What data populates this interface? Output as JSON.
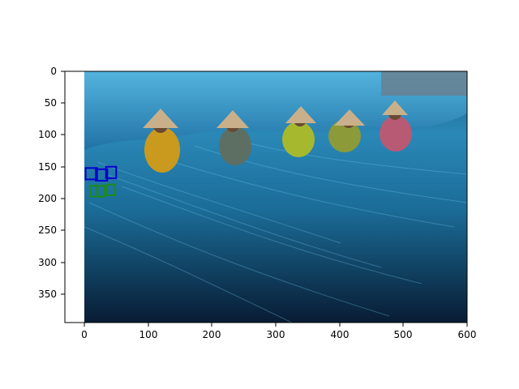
{
  "figure": {
    "x_ticks": [
      "0",
      "100",
      "200",
      "300",
      "400",
      "500",
      "600"
    ],
    "y_ticks": [
      "0",
      "50",
      "100",
      "150",
      "200",
      "250",
      "300",
      "350"
    ],
    "xlim": [
      -30,
      600
    ],
    "ylim": [
      395,
      -4
    ],
    "image_extent": {
      "x": [
        0,
        600
      ],
      "y": [
        395,
        0
      ]
    }
  },
  "photo": {
    "description": "fishermen mending blue nets",
    "colors": {
      "net_dark": "#0b2a4a",
      "net_mid": "#1f6fa3",
      "net_light": "#4fb3df",
      "hat": "#c9b08a",
      "background_top": "#6a7e8c"
    }
  },
  "annotations": {
    "word_boxes": [
      {
        "color": "#0000cc",
        "x": [
          2,
          20
        ],
        "y": [
          152,
          170
        ]
      },
      {
        "color": "#0000cc",
        "x": [
          18,
          36
        ],
        "y": [
          154,
          172
        ]
      },
      {
        "color": "#0000cc",
        "x": [
          34,
          50
        ],
        "y": [
          150,
          168
        ]
      }
    ],
    "char_boxes": [
      {
        "color": "#1a8c1a",
        "x": [
          9,
          20
        ],
        "y": [
          180,
          197
        ]
      },
      {
        "color": "#1a8c1a",
        "x": [
          21,
          32
        ],
        "y": [
          180,
          197
        ]
      },
      {
        "color": "#1a8c1a",
        "x": [
          35,
          48
        ],
        "y": [
          178,
          195
        ]
      }
    ]
  }
}
